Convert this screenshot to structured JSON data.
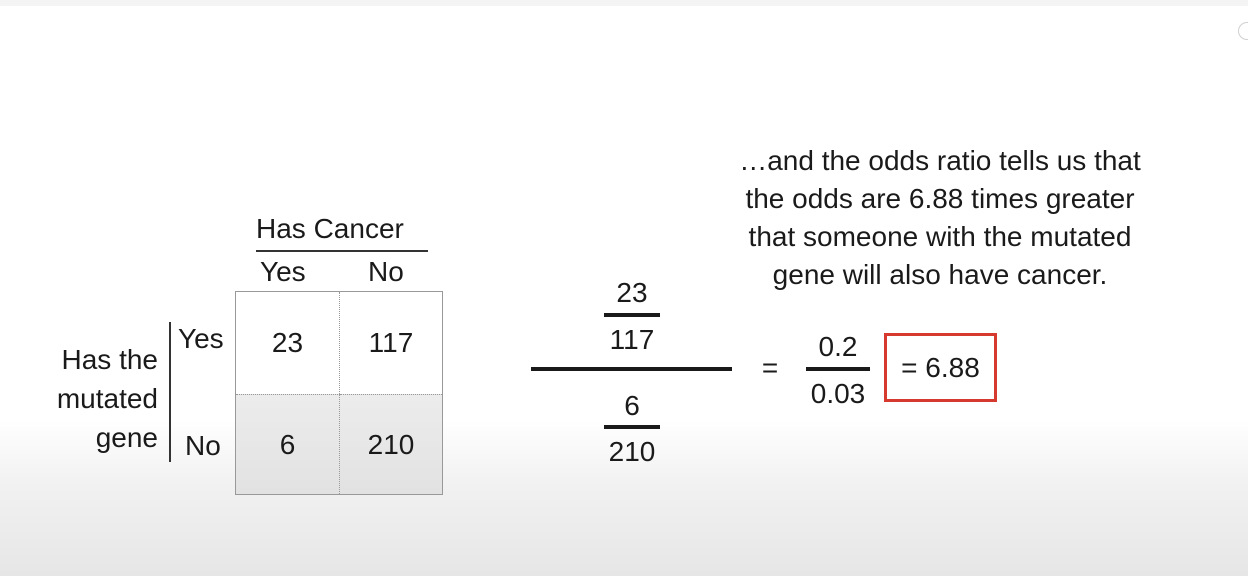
{
  "caption": {
    "lines": [
      "…and the odds ratio tells us that",
      "the odds are 6.88 times greater",
      "that someone with the mutated",
      "gene will also have cancer."
    ]
  },
  "table": {
    "column_title": "Has Cancer",
    "column_labels": [
      "Yes",
      "No"
    ],
    "row_title_lines": [
      "Has the",
      "mutated",
      "gene"
    ],
    "row_labels": [
      "Yes",
      "No"
    ],
    "cells": [
      [
        "23",
        "117"
      ],
      [
        "6",
        "210"
      ]
    ]
  },
  "expression": {
    "top_fraction": {
      "numerator": "23",
      "denominator": "117"
    },
    "bottom_fraction": {
      "numerator": "6",
      "denominator": "210"
    },
    "equals": "=",
    "simplified": {
      "numerator": "0.2",
      "denominator": "0.03"
    },
    "result": "= 6.88"
  },
  "colors": {
    "result_box_border": "#d63a2e",
    "shaded_row": "#e6e6e6"
  }
}
